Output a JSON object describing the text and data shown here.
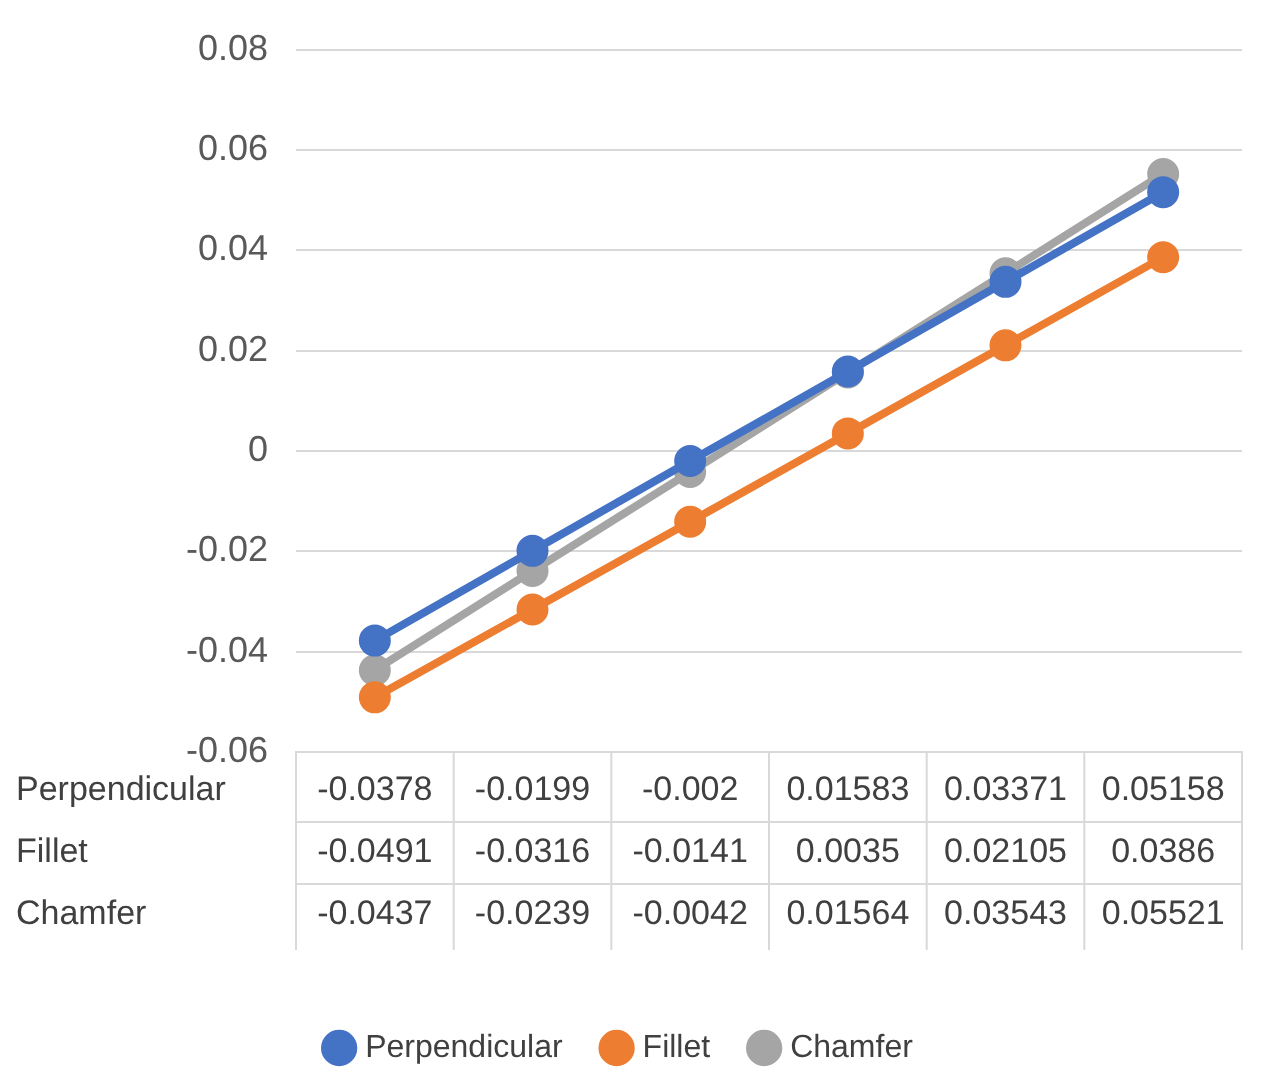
{
  "chart_data": {
    "type": "line",
    "categories": [
      null,
      null,
      null,
      null,
      null,
      null
    ],
    "series": [
      {
        "name": "Perpendicular",
        "color": "#4472c4",
        "values": [
          -0.0378,
          -0.0199,
          -0.002,
          0.01583,
          0.03371,
          0.05158
        ]
      },
      {
        "name": "Fillet",
        "color": "#ed7d31",
        "values": [
          -0.0491,
          -0.0316,
          -0.0141,
          0.0035,
          0.02105,
          0.0386
        ]
      },
      {
        "name": "Chamfer",
        "color": "#a5a5a5",
        "values": [
          -0.0437,
          -0.0239,
          -0.0042,
          0.01564,
          0.03543,
          0.05521
        ]
      }
    ],
    "ylim": [
      -0.06,
      0.08
    ],
    "yticks": [
      -0.06,
      -0.04,
      -0.02,
      0,
      0.02,
      0.04,
      0.06,
      0.08
    ],
    "grid": "y",
    "legend": "bottom",
    "marker": "circle",
    "line_style": "solid",
    "data_labels": true
  }
}
